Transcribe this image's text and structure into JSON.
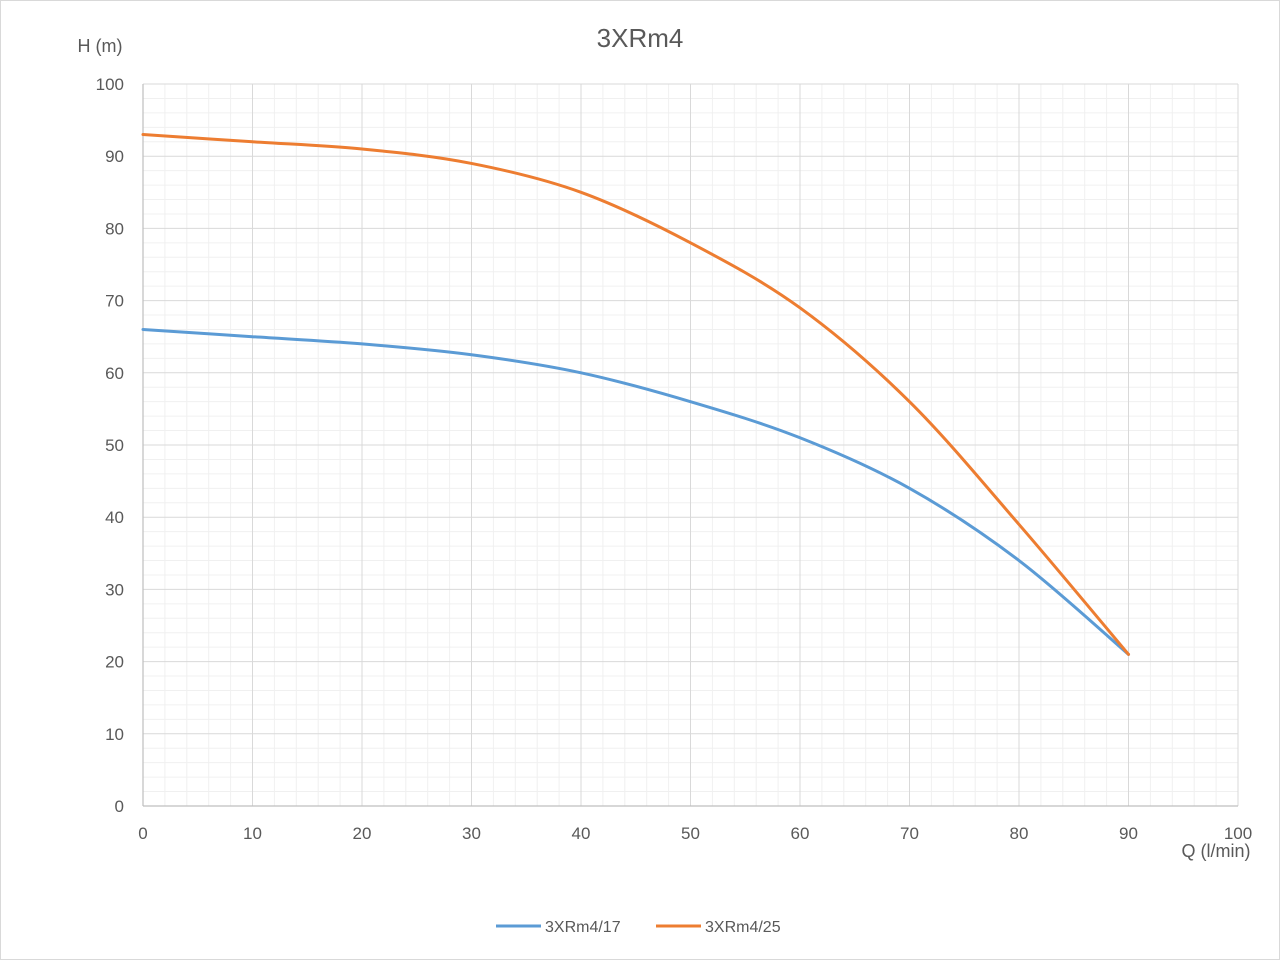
{
  "chart_data": {
    "type": "line",
    "title": "3XRm4",
    "xlabel": "Q (l/min)",
    "ylabel": "H (m)",
    "xlim": [
      0,
      100
    ],
    "ylim": [
      0,
      100
    ],
    "x_ticks": [
      "0",
      "10",
      "20",
      "30",
      "40",
      "50",
      "60",
      "70",
      "80",
      "90",
      "100"
    ],
    "y_ticks": [
      "0",
      "10",
      "20",
      "30",
      "40",
      "50",
      "60",
      "70",
      "80",
      "90",
      "100"
    ],
    "grid": true,
    "legend_position": "bottom",
    "series": [
      {
        "name": "3XRm4/17",
        "color": "#5b9bd5",
        "x": [
          0,
          10,
          20,
          30,
          40,
          50,
          60,
          70,
          80,
          90
        ],
        "y": [
          66,
          65,
          64,
          62.5,
          60,
          56,
          51,
          44,
          34,
          21
        ]
      },
      {
        "name": "3XRm4/25",
        "color": "#ed7d31",
        "x": [
          0,
          10,
          20,
          30,
          40,
          50,
          60,
          70,
          80,
          90
        ],
        "y": [
          93,
          92,
          91,
          89,
          85,
          78,
          69,
          56,
          39,
          21
        ]
      }
    ]
  }
}
